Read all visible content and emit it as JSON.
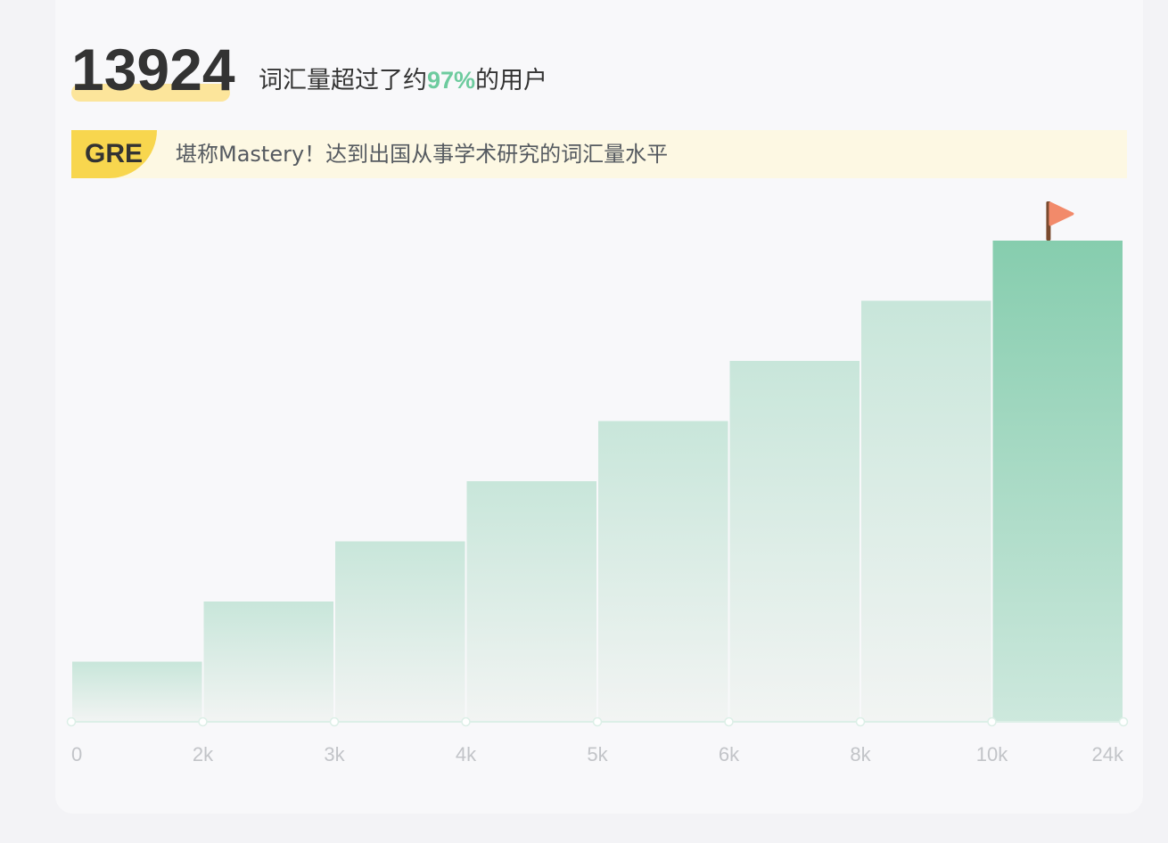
{
  "header": {
    "score": "13924",
    "text_before": "词汇量超过了约",
    "percent": "97%",
    "text_after": "的用户"
  },
  "banner": {
    "badge": "GRE",
    "text": "堪称Mastery！达到出国从事学术研究的词汇量水平"
  },
  "colors": {
    "accent_green": "#6dcb9e",
    "bar_light_top": "#c8e6da",
    "bar_light_bottom": "#f2f4f3",
    "bar_active_top": "#86cdae",
    "bar_active_bottom": "#cde8dd",
    "badge_yellow": "#f8d64e",
    "score_highlight": "#fce59b",
    "flag": "#f28a6a",
    "flag_pole": "#7a4a2e"
  },
  "chart_data": {
    "type": "bar",
    "categories": [
      "0–2k",
      "2k–3k",
      "3k–4k",
      "4k–5k",
      "5k–6k",
      "6k–8k",
      "8k–10k",
      "10k–24k"
    ],
    "x_ticks": [
      "0",
      "2k",
      "3k",
      "4k",
      "5k",
      "6k",
      "8k",
      "10k",
      "24k"
    ],
    "values": [
      1,
      2,
      3,
      4,
      5,
      6,
      7,
      8
    ],
    "ylim": [
      0,
      8
    ],
    "highlight_index": 7,
    "marker": "flag",
    "grid": false,
    "title": "",
    "xlabel": "",
    "ylabel": ""
  }
}
